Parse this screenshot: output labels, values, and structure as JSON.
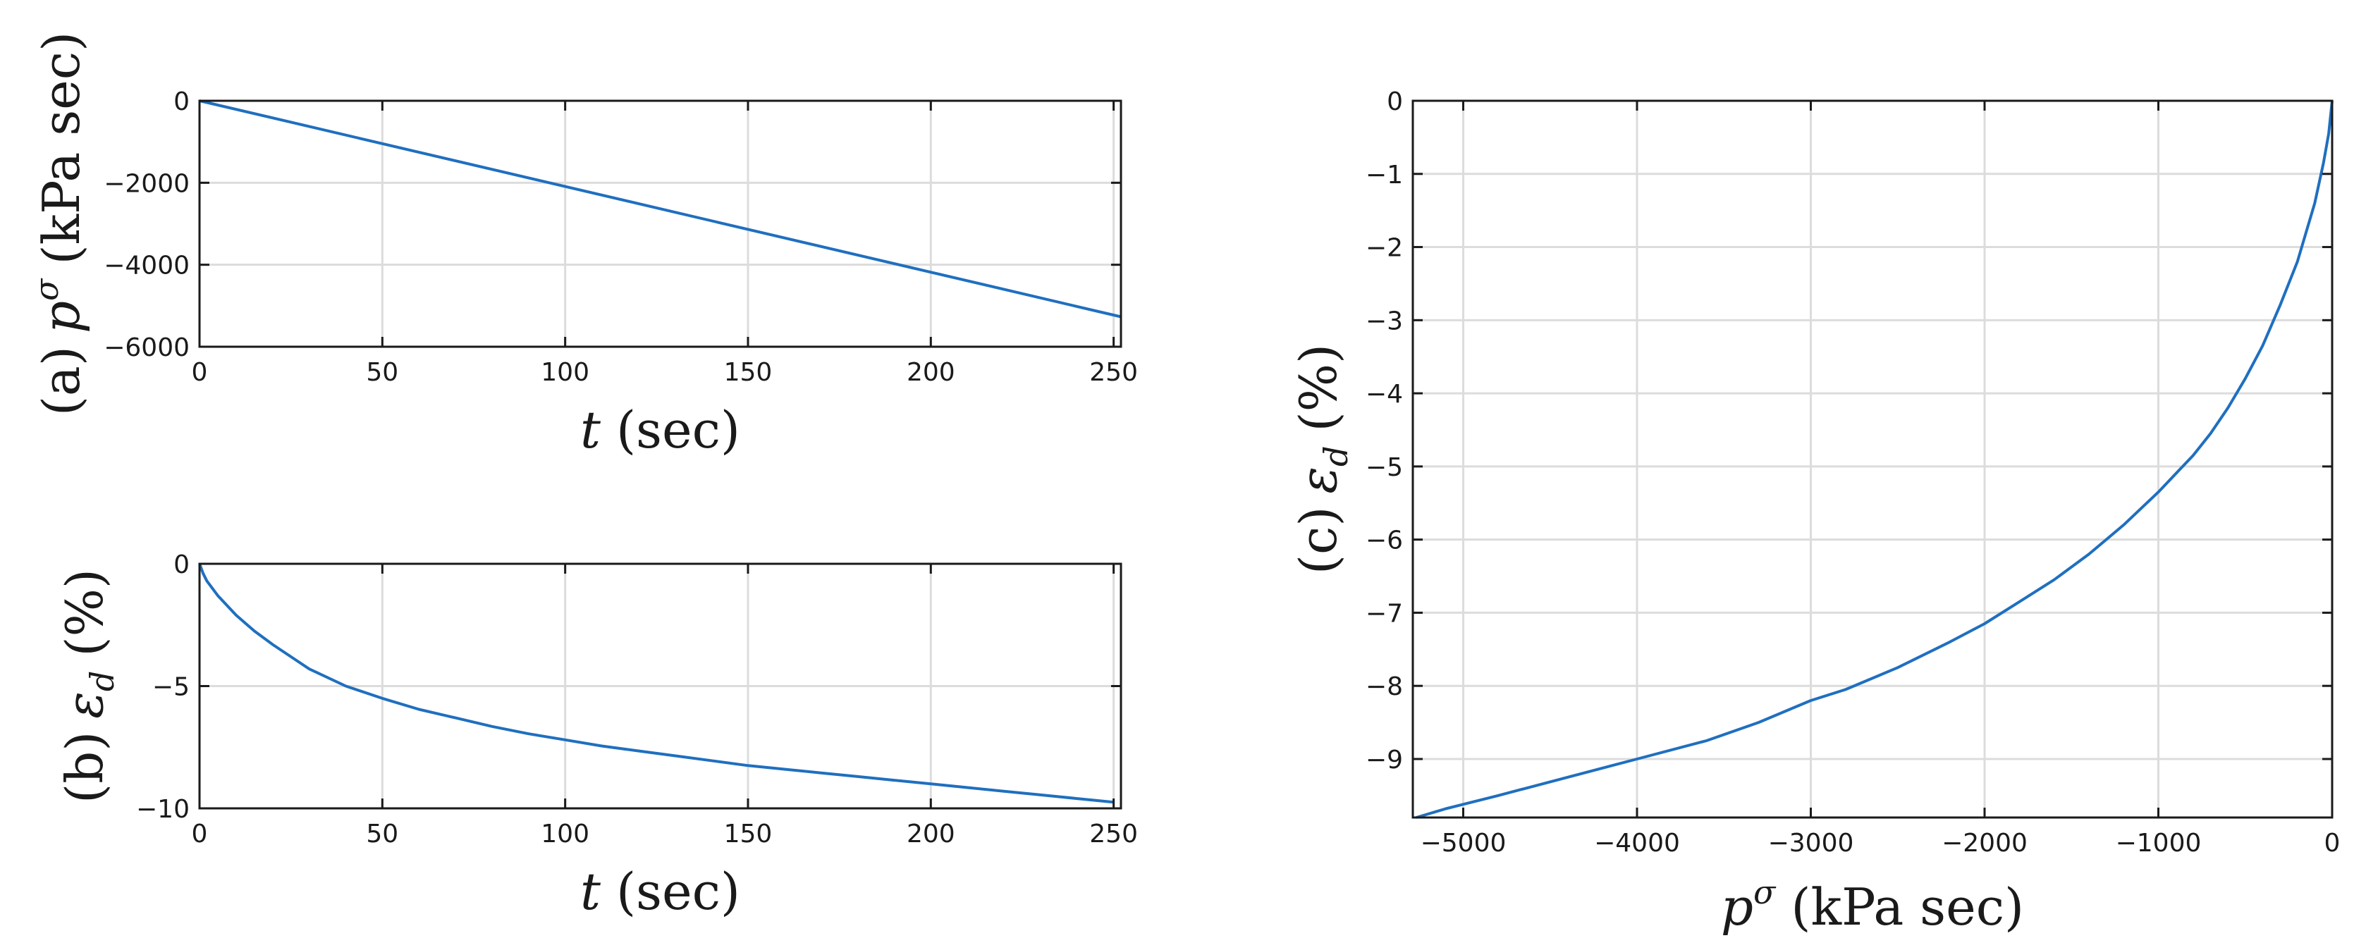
{
  "chart_data": [
    {
      "id": "a",
      "type": "line",
      "ylabel_prefix": "(a)",
      "ylabel_symbol": "p",
      "ylabel_sup": "σ",
      "ylabel_unit": "(kPa sec)",
      "xlabel_symbol": "t",
      "xlabel_unit": "(sec)",
      "xlim": [
        0,
        252
      ],
      "ylim": [
        -6000,
        0
      ],
      "xticks": [
        0,
        50,
        100,
        150,
        200,
        250
      ],
      "yticks": [
        0,
        -2000,
        -4000,
        -6000
      ],
      "xtick_labels": [
        "0",
        "50",
        "100",
        "150",
        "200",
        "250"
      ],
      "ytick_labels": [
        "0",
        "-2000",
        "-4000",
        "-6000"
      ],
      "grid": true,
      "series": [
        {
          "x": [
            0,
            252
          ],
          "y": [
            0,
            -5270
          ],
          "color": "#1f6fbf"
        }
      ]
    },
    {
      "id": "b",
      "type": "line",
      "ylabel_prefix": "(b)",
      "ylabel_symbol": "ε",
      "ylabel_sub": "d",
      "ylabel_unit": "(%)",
      "xlabel_symbol": "t",
      "xlabel_unit": "(sec)",
      "xlim": [
        0,
        252
      ],
      "ylim": [
        -10,
        0
      ],
      "xticks": [
        0,
        50,
        100,
        150,
        200,
        250
      ],
      "yticks": [
        0,
        -5,
        -10
      ],
      "xtick_labels": [
        "0",
        "50",
        "100",
        "150",
        "200",
        "250"
      ],
      "ytick_labels": [
        "0",
        "-5",
        "-10"
      ],
      "grid": true,
      "series": [
        {
          "x": [
            0,
            1,
            2,
            5,
            10,
            15,
            20,
            25,
            30,
            40,
            50,
            60,
            70,
            80,
            90,
            100,
            110,
            120,
            130,
            140,
            150,
            160,
            170,
            180,
            190,
            200,
            210,
            220,
            230,
            240,
            250
          ],
          "y": [
            0,
            -0.4,
            -0.7,
            -1.3,
            -2.1,
            -2.75,
            -3.3,
            -3.8,
            -4.3,
            -5.0,
            -5.5,
            -5.95,
            -6.3,
            -6.65,
            -6.95,
            -7.2,
            -7.45,
            -7.65,
            -7.85,
            -8.05,
            -8.25,
            -8.4,
            -8.55,
            -8.7,
            -8.85,
            -9.0,
            -9.15,
            -9.3,
            -9.45,
            -9.6,
            -9.75
          ],
          "color": "#1f6fbf"
        }
      ]
    },
    {
      "id": "c",
      "type": "line",
      "ylabel_prefix": "(c)",
      "ylabel_symbol": "ε",
      "ylabel_sub": "d",
      "ylabel_unit": "(%)",
      "xlabel_symbol": "p",
      "xlabel_sup": "σ",
      "xlabel_unit": "(kPa sec)",
      "xlim": [
        -5290,
        0
      ],
      "ylim": [
        -9.8,
        0
      ],
      "xticks": [
        -5000,
        -4000,
        -3000,
        -2000,
        -1000,
        0
      ],
      "yticks": [
        0,
        -1,
        -2,
        -3,
        -4,
        -5,
        -6,
        -7,
        -8,
        -9
      ],
      "xtick_labels": [
        "-5000",
        "-4000",
        "-3000",
        "-2000",
        "-1000",
        "0"
      ],
      "ytick_labels": [
        "0",
        "-1",
        "-2",
        "-3",
        "-4",
        "-5",
        "-6",
        "-7",
        "-8",
        "-9"
      ],
      "grid": true,
      "series": [
        {
          "x": [
            0,
            -20,
            -50,
            -100,
            -200,
            -300,
            -400,
            -500,
            -600,
            -700,
            -800,
            -900,
            -1000,
            -1200,
            -1400,
            -1600,
            -1800,
            -2000,
            -2200,
            -2500,
            -2800,
            -3000,
            -3300,
            -3600,
            -4000,
            -4400,
            -4800,
            -5100,
            -5270
          ],
          "y": [
            0,
            -0.45,
            -0.85,
            -1.4,
            -2.2,
            -2.8,
            -3.35,
            -3.8,
            -4.2,
            -4.55,
            -4.85,
            -5.1,
            -5.35,
            -5.8,
            -6.2,
            -6.55,
            -6.85,
            -7.15,
            -7.4,
            -7.75,
            -8.05,
            -8.2,
            -8.5,
            -8.75,
            -9.0,
            -9.25,
            -9.5,
            -9.68,
            -9.8
          ],
          "color": "#1f6fbf"
        }
      ]
    }
  ]
}
